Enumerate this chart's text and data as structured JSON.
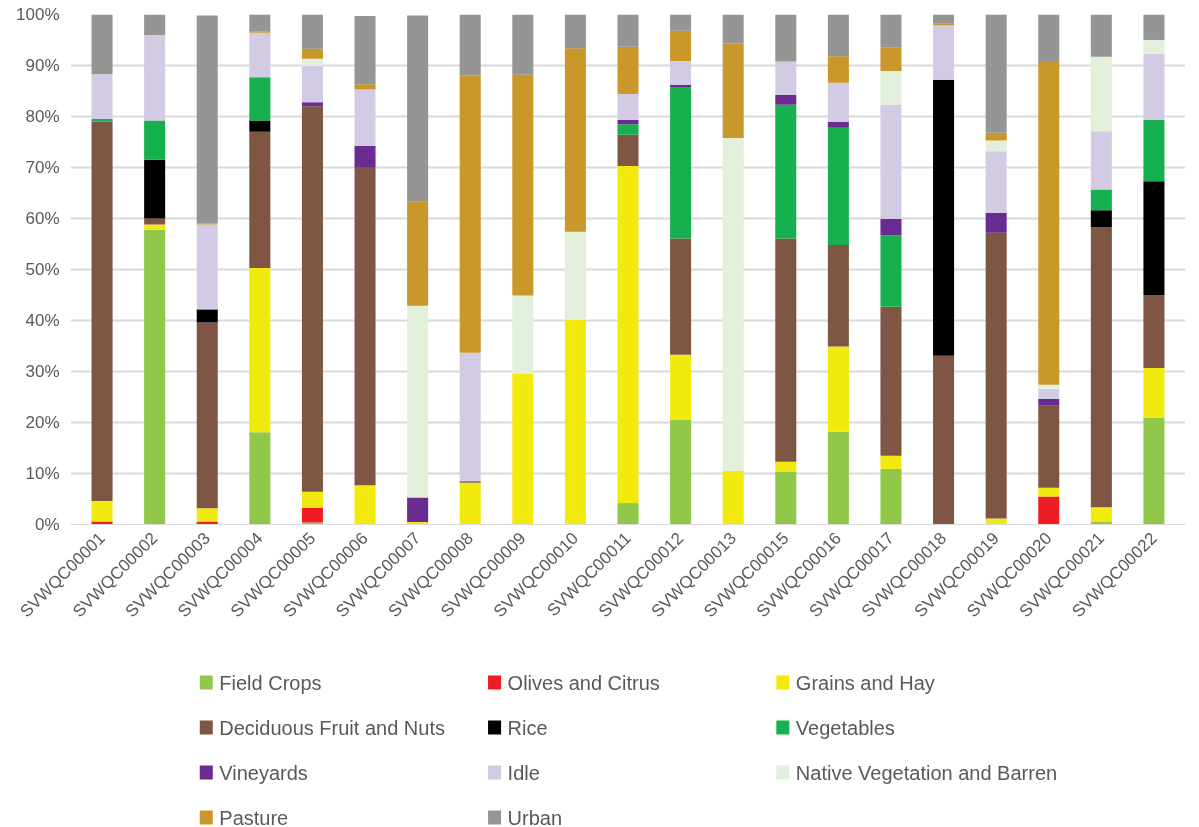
{
  "chart_data": {
    "type": "bar",
    "stacked": true,
    "categories": [
      "SVWQC00001",
      "SVWQC00002",
      "SVWQC00003",
      "SVWQC00004",
      "SVWQC00005",
      "SVWQC00006",
      "SVWQC00007",
      "SVWQC00008",
      "SVWQC00009",
      "SVWQC00010",
      "SVWQC00011",
      "SVWQC00012",
      "SVWQC00013",
      "SVWQC00015",
      "SVWQC00016",
      "SVWQC00017",
      "SVWQC00018",
      "SVWQC00019",
      "SVWQC00020",
      "SVWQC00021",
      "SVWQC00022"
    ],
    "ylim": [
      0,
      100
    ],
    "yticks": [
      {
        "value": 0,
        "label": "0%"
      },
      {
        "value": 10,
        "label": "10%"
      },
      {
        "value": 20,
        "label": "20%"
      },
      {
        "value": 30,
        "label": "30%"
      },
      {
        "value": 40,
        "label": "40%"
      },
      {
        "value": 50,
        "label": "50%"
      },
      {
        "value": 60,
        "label": "60%"
      },
      {
        "value": 70,
        "label": "70%"
      },
      {
        "value": 80,
        "label": "80%"
      },
      {
        "value": 90,
        "label": "90%"
      },
      {
        "value": 100,
        "label": "100%"
      }
    ],
    "grid": "y",
    "legend": "bottom",
    "series": [
      {
        "name": "Field Crops",
        "color": "#92c84a",
        "values": [
          0,
          57.8,
          0,
          18.1,
          0.4,
          0,
          0,
          0,
          0,
          0,
          4.2,
          20.6,
          0,
          10.3,
          18.2,
          10.9,
          0,
          0,
          0,
          0.5,
          20.9
        ]
      },
      {
        "name": "Olives and Citrus",
        "color": "#ee1c25",
        "values": [
          0.6,
          0,
          0.6,
          0,
          2.9,
          0,
          0,
          0,
          0,
          0,
          0,
          0,
          0,
          0,
          0,
          0,
          0,
          0,
          5.5,
          0,
          0
        ]
      },
      {
        "name": "Grains and Hay",
        "color": "#f2ea0e",
        "values": [
          4.0,
          1.0,
          2.6,
          32.2,
          3.1,
          7.7,
          0.5,
          8.2,
          29.6,
          40.1,
          66.1,
          12.7,
          10.5,
          2.0,
          16.7,
          2.6,
          0,
          1.2,
          1.7,
          2.9,
          9.8
        ]
      },
      {
        "name": "Deciduous Fruit and Nuts",
        "color": "#7f5544",
        "values": [
          74.4,
          1.2,
          36.4,
          26.7,
          75.6,
          62.4,
          0,
          0.3,
          0,
          0,
          6.1,
          22.8,
          0,
          43.8,
          19.9,
          29.2,
          33.1,
          56.0,
          16.1,
          54.9,
          14.3
        ]
      },
      {
        "name": "Rice",
        "color": "#000000",
        "values": [
          0,
          11.5,
          2.5,
          2.2,
          0,
          0,
          0,
          0,
          0,
          0,
          0,
          0,
          0,
          0,
          0,
          0,
          54.1,
          0,
          0,
          3.3,
          22.3
        ]
      },
      {
        "name": "Vegetables",
        "color": "#16b04f",
        "values": [
          0.5,
          7.7,
          0.2,
          8.5,
          0,
          0,
          0,
          0,
          0,
          0,
          2.1,
          29.7,
          0,
          26.2,
          23.0,
          14.0,
          0,
          0,
          0,
          4.1,
          12.0
        ]
      },
      {
        "name": "Vineyards",
        "color": "#6a2c91",
        "values": [
          0,
          0,
          0,
          0,
          0.8,
          4.1,
          4.8,
          0,
          0,
          0,
          0.8,
          0.4,
          0,
          1.9,
          1.1,
          3.2,
          0,
          3.9,
          1.3,
          0,
          0
        ]
      },
      {
        "name": "Idle",
        "color": "#d3cbe3",
        "values": [
          8.8,
          16.8,
          16.5,
          8.7,
          7.1,
          11.1,
          null,
          25.2,
          0,
          0,
          5.1,
          4.7,
          0,
          6.6,
          7.7,
          22.4,
          10.7,
          12.1,
          2.0,
          11.4,
          13.0
        ]
      },
      {
        "name": "Native Vegetation and Barren",
        "color": "#e2efda",
        "values": [
          0,
          0,
          null,
          0,
          1.4,
          null,
          37.6,
          0,
          15.3,
          17.3,
          0,
          0,
          65.3,
          0,
          0,
          6.6,
          0,
          2.1,
          0.8,
          14.6,
          2.7
        ]
      },
      {
        "name": "Pasture",
        "color": "#c9972a",
        "values": [
          0,
          0,
          0.2,
          0.3,
          2.0,
          1.0,
          20.5,
          54.3,
          43.3,
          36.0,
          9.3,
          5.9,
          18.5,
          0,
          5.2,
          4.6,
          0.3,
          1.5,
          63.5,
          0,
          0.2
        ]
      },
      {
        "name": "Urban",
        "color": "#959595",
        "values": [
          11.7,
          4.0,
          40.8,
          3.3,
          6.7,
          13.4,
          36.4,
          12.0,
          11.8,
          6.6,
          6.3,
          3.2,
          5.7,
          9.2,
          8.2,
          6.5,
          1.8,
          23.2,
          9.1,
          8.3,
          4.8
        ]
      }
    ]
  }
}
